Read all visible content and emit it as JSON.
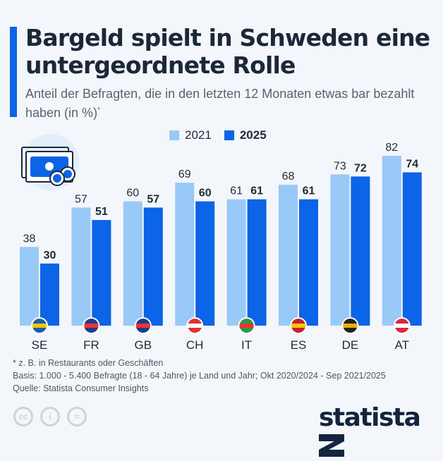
{
  "title": "Bargeld spielt in Schweden eine untergeordnete Rolle",
  "subtitle": "Anteil der Befragten, die in den letzten 12 Monaten etwas bar bezahlt haben (in %)",
  "subtitle_mark": "*",
  "colors": {
    "accent": "#0c64e6",
    "series_2021": "#99c9f6",
    "series_2025": "#0c64e6"
  },
  "icon": "banknote-coins-icon",
  "chart_data": {
    "type": "bar",
    "categories": [
      "SE",
      "FR",
      "GB",
      "CH",
      "IT",
      "ES",
      "DE",
      "AT"
    ],
    "flags": [
      "sweden-flag-icon",
      "france-flag-icon",
      "uk-flag-icon",
      "switzerland-flag-icon",
      "italy-flag-icon",
      "spain-flag-icon",
      "germany-flag-icon",
      "austria-flag-icon"
    ],
    "series": [
      {
        "name": "2021",
        "values": [
          38,
          57,
          60,
          69,
          61,
          68,
          73,
          82
        ]
      },
      {
        "name": "2025",
        "values": [
          30,
          51,
          57,
          60,
          61,
          61,
          72,
          74
        ]
      }
    ],
    "ylim": [
      0,
      82
    ],
    "legend": "top-center",
    "grid": false
  },
  "footer": {
    "note": "* z. B. in Restaurants oder Geschäften",
    "basis": "Basis: 1.000 - 5.400 Befragte (18 - 64 Jahre) je Land und Jahr; Okt 2020/2024 - Sep 2021/2025",
    "source": "Quelle: Statista Consumer Insights"
  },
  "license_icons": [
    "cc-icon",
    "by-icon",
    "nd-icon"
  ],
  "license_labels": [
    "cc",
    "i",
    "="
  ],
  "logo": "statista"
}
